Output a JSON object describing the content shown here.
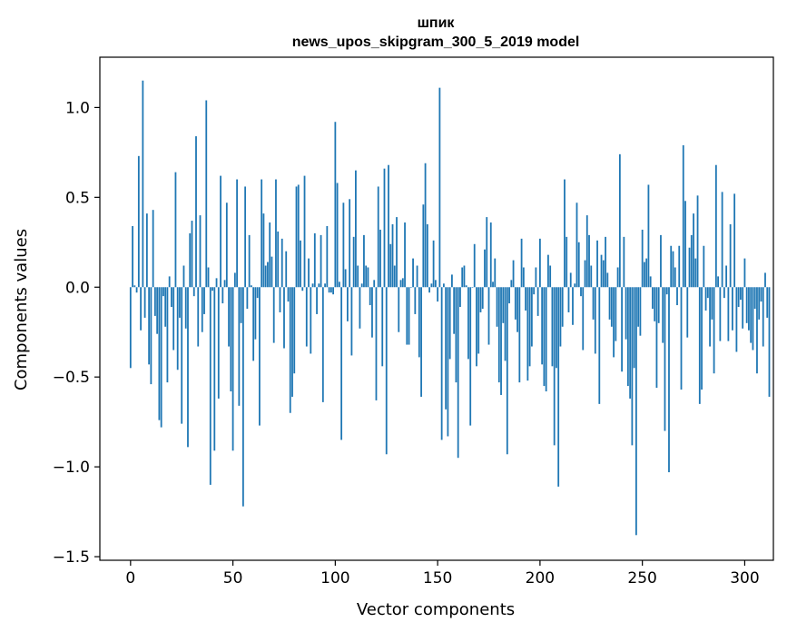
{
  "chart_data": {
    "type": "bar",
    "title": "шпик",
    "subtitle": "news_upos_skipgram_300_5_2019 model",
    "xlabel": "Vector components",
    "ylabel": "Components values",
    "xlim": [
      -15,
      314
    ],
    "ylim": [
      -1.52,
      1.28
    ],
    "xticks": [
      0,
      50,
      100,
      150,
      200,
      250,
      300
    ],
    "yticks": [
      -1.5,
      -1.0,
      -0.5,
      0.0,
      0.5,
      1.0
    ],
    "xtick_labels": [
      "0",
      "50",
      "100",
      "150",
      "200",
      "250",
      "300"
    ],
    "ytick_labels": [
      "−1.5",
      "−1.0",
      "−0.5",
      "0.0",
      "0.5",
      "1.0"
    ],
    "grid": false,
    "color": "#1f77b4",
    "values": [
      -0.45,
      0.34,
      0.01,
      -0.03,
      0.73,
      -0.24,
      1.15,
      -0.17,
      0.41,
      -0.43,
      -0.54,
      0.43,
      -0.16,
      -0.26,
      -0.74,
      -0.78,
      -0.05,
      -0.22,
      -0.53,
      0.06,
      -0.11,
      -0.35,
      0.64,
      -0.46,
      -0.17,
      -0.76,
      0.12,
      -0.23,
      -0.89,
      0.3,
      0.37,
      -0.05,
      0.84,
      -0.33,
      0.4,
      -0.25,
      -0.15,
      1.04,
      0.11,
      -1.1,
      -0.02,
      -0.91,
      0.05,
      -0.62,
      0.62,
      -0.09,
      0.04,
      0.47,
      -0.33,
      -0.58,
      -0.91,
      0.08,
      0.6,
      -0.66,
      -0.2,
      -1.22,
      0.56,
      -0.12,
      0.29,
      0.01,
      -0.41,
      -0.29,
      -0.06,
      -0.77,
      0.6,
      0.41,
      0.12,
      0.14,
      0.36,
      0.17,
      -0.31,
      0.6,
      0.31,
      -0.14,
      0.27,
      -0.34,
      0.2,
      -0.08,
      -0.7,
      -0.61,
      -0.48,
      0.56,
      0.57,
      0.26,
      -0.02,
      0.62,
      -0.33,
      0.16,
      -0.37,
      0.02,
      0.3,
      -0.15,
      0.02,
      0.29,
      -0.64,
      0.02,
      0.34,
      -0.03,
      -0.03,
      -0.04,
      0.92,
      0.58,
      0.03,
      -0.85,
      0.47,
      0.1,
      -0.19,
      0.49,
      -0.38,
      0.28,
      0.65,
      0.12,
      -0.23,
      0.02,
      0.29,
      0.12,
      0.11,
      -0.1,
      -0.28,
      0.04,
      -0.63,
      0.56,
      0.32,
      -0.44,
      0.66,
      -0.93,
      0.68,
      0.24,
      0.35,
      0.12,
      0.39,
      -0.25,
      0.04,
      0.05,
      0.36,
      -0.32,
      -0.32,
      0.0,
      0.16,
      -0.15,
      0.12,
      -0.39,
      -0.61,
      0.46,
      0.69,
      0.35,
      -0.03,
      0.02,
      0.26,
      0.04,
      -0.08,
      1.11,
      -0.85,
      0.02,
      -0.68,
      -0.83,
      -0.4,
      0.07,
      -0.26,
      -0.53,
      -0.95,
      -0.11,
      0.11,
      0.12,
      0.01,
      -0.4,
      -0.77,
      0.0,
      0.24,
      -0.44,
      -0.37,
      -0.14,
      -0.12,
      0.21,
      0.39,
      -0.32,
      0.36,
      0.03,
      0.16,
      -0.22,
      -0.53,
      -0.6,
      -0.2,
      -0.41,
      -0.93,
      -0.09,
      0.04,
      0.15,
      -0.18,
      -0.25,
      -0.53,
      0.27,
      0.11,
      -0.13,
      -0.52,
      -0.44,
      -0.33,
      -0.04,
      0.11,
      -0.16,
      0.27,
      -0.43,
      -0.55,
      -0.58,
      0.18,
      0.12,
      -0.44,
      -0.88,
      -0.45,
      -1.11,
      -0.33,
      -0.22,
      0.6,
      0.28,
      -0.14,
      0.08,
      -0.21,
      0.02,
      0.47,
      0.25,
      -0.05,
      -0.35,
      0.15,
      0.4,
      0.29,
      0.12,
      -0.18,
      -0.37,
      0.26,
      -0.65,
      0.18,
      0.15,
      0.28,
      0.08,
      -0.18,
      -0.22,
      -0.39,
      -0.3,
      0.11,
      0.74,
      -0.47,
      0.28,
      -0.29,
      -0.55,
      -0.62,
      -0.88,
      -0.45,
      -1.38,
      -0.22,
      -0.27,
      0.32,
      0.14,
      0.16,
      0.57,
      0.06,
      -0.12,
      -0.19,
      -0.56,
      -0.2,
      0.29,
      -0.31,
      -0.8,
      -0.04,
      -1.03,
      0.23,
      0.2,
      0.11,
      -0.1,
      0.23,
      -0.57,
      0.79,
      0.48,
      -0.28,
      0.22,
      0.29,
      0.41,
      0.16,
      0.51,
      -0.65,
      -0.57,
      0.23,
      -0.13,
      -0.06,
      -0.33,
      -0.18,
      -0.48,
      0.68,
      0.06,
      -0.3,
      0.53,
      -0.06,
      0.12,
      -0.3,
      0.35,
      -0.24,
      0.52,
      -0.36,
      -0.11,
      -0.07,
      -0.23,
      0.16,
      -0.2,
      -0.24,
      -0.31,
      -0.35,
      -0.12,
      -0.48,
      -0.18,
      -0.08,
      -0.33,
      0.08,
      -0.17,
      -0.61
    ]
  }
}
